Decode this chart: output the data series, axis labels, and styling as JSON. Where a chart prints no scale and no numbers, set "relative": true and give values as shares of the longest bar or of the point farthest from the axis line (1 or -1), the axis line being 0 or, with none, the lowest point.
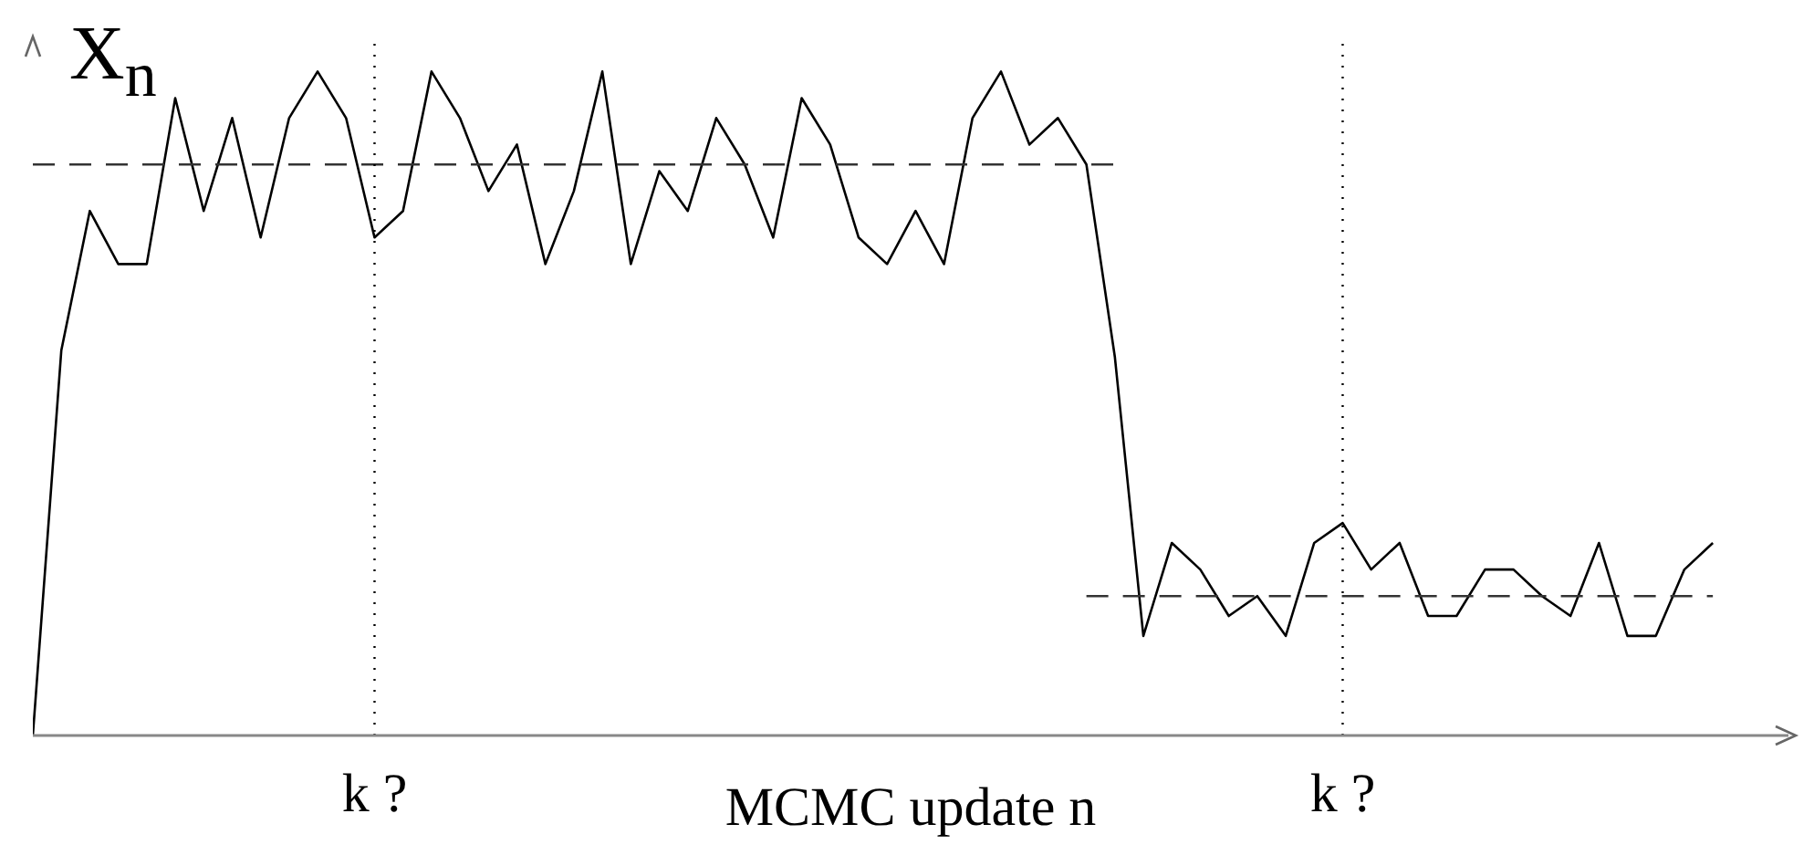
{
  "chart_data": {
    "type": "line",
    "relative": true,
    "xlabel": "MCMC update n",
    "ylabel": "X$_{n}$",
    "categories": [
      null,
      null,
      null,
      null,
      null,
      null,
      null,
      null,
      null,
      null,
      null,
      null,
      null,
      null,
      null,
      null,
      null,
      null,
      null,
      null,
      null,
      null,
      null,
      null,
      null,
      null,
      null,
      null,
      null,
      null,
      null,
      null,
      null,
      null,
      null,
      null,
      null,
      null,
      null,
      null,
      null,
      null,
      null,
      null,
      null,
      null,
      null,
      null,
      null,
      null,
      null,
      null,
      null,
      null,
      null,
      null,
      null,
      null,
      null,
      null
    ],
    "series": [
      {
        "color": "#000000",
        "values": [
          0,
          0.58,
          0.79,
          0.71,
          0.71,
          0.96,
          0.79,
          0.93,
          0.75,
          0.93,
          1,
          0.93,
          0.75,
          0.79,
          1,
          0.93,
          0.82,
          0.89,
          0.71,
          0.82,
          1,
          0.71,
          0.85,
          0.79,
          0.93,
          0.86,
          0.75,
          0.96,
          0.89,
          0.75,
          0.71,
          0.79,
          0.71,
          0.93,
          1,
          0.89,
          0.93,
          0.86,
          0.57,
          0.15,
          0.29,
          0.25,
          0.18,
          0.21,
          0.15,
          0.29,
          0.32,
          0.25,
          0.29,
          0.18,
          0.18,
          0.25,
          0.25,
          0.21,
          0.18,
          0.29,
          0.15,
          0.15,
          0.25,
          0.29
        ]
      },
      {
        "type": "line",
        "color": "#333333",
        "line_style": "dashed",
        "values": [
          0.86,
          null,
          null,
          null,
          null,
          null,
          null,
          null,
          null,
          null,
          null,
          null,
          null,
          null,
          null,
          null,
          null,
          null,
          null,
          null,
          null,
          null,
          null,
          null,
          null,
          null,
          null,
          null,
          null,
          null,
          null,
          null,
          null,
          null,
          null,
          null,
          null,
          null,
          0.86,
          null,
          null,
          null,
          null,
          null,
          null,
          null,
          null,
          null,
          null,
          null,
          null,
          null,
          null,
          null,
          null,
          null,
          null,
          null,
          null,
          null
        ]
      },
      {
        "type": "line",
        "color": "#333333",
        "line_style": "dashed",
        "values": [
          null,
          null,
          null,
          null,
          null,
          null,
          null,
          null,
          null,
          null,
          null,
          null,
          null,
          null,
          null,
          null,
          null,
          null,
          null,
          null,
          null,
          null,
          null,
          null,
          null,
          null,
          null,
          null,
          null,
          null,
          null,
          null,
          null,
          null,
          null,
          null,
          null,
          0.21,
          null,
          null,
          null,
          null,
          null,
          null,
          null,
          null,
          null,
          null,
          null,
          null,
          null,
          null,
          null,
          null,
          null,
          null,
          null,
          null,
          null,
          0.21
        ]
      }
    ],
    "annotations": [
      "k ?",
      "k ?"
    ]
  }
}
